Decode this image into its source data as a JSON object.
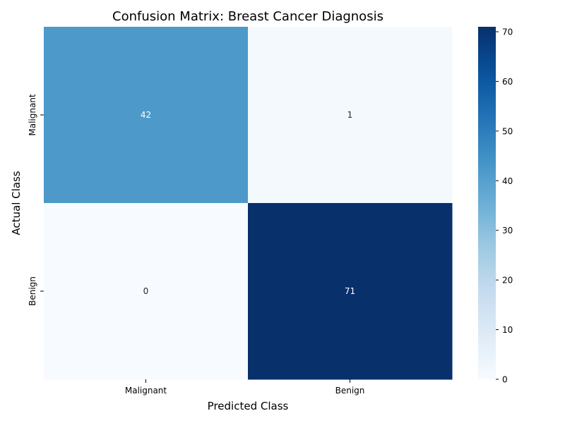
{
  "chart_data": {
    "type": "heatmap",
    "title": "Confusion Matrix: Breast Cancer Diagnosis",
    "xlabel": "Predicted Class",
    "ylabel": "Actual Class",
    "x_categories": [
      "Malignant",
      "Benign"
    ],
    "y_categories": [
      "Malignant",
      "Benign"
    ],
    "values": [
      [
        42,
        1
      ],
      [
        0,
        71
      ]
    ],
    "colorbar": {
      "colormap": "Blues",
      "vmin": 0,
      "vmax": 71,
      "ticks": [
        0,
        10,
        20,
        30,
        40,
        50,
        60,
        70
      ]
    },
    "colors": {
      "low": "#f7fbff",
      "high": "#08306b",
      "annot_light": "#ffffff",
      "annot_dark": "#262626"
    }
  }
}
